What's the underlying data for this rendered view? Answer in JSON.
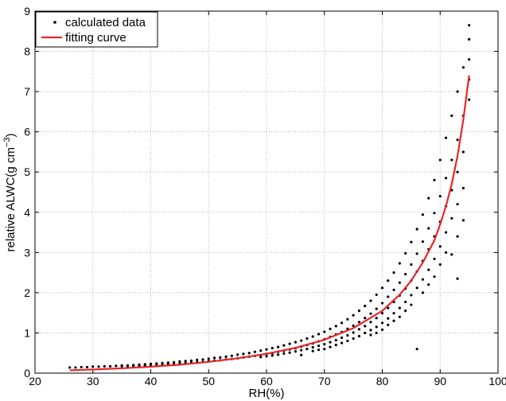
{
  "chart_data": {
    "type": "scatter",
    "xlabel": "RH(%)",
    "ylabel": "relative ALWC(g cm",
    "ylabel_superscript": "−3",
    "ylabel_close": ")",
    "xlim": [
      20,
      100
    ],
    "ylim": [
      0,
      9
    ],
    "xticks": [
      "20",
      "30",
      "40",
      "50",
      "60",
      "70",
      "80",
      "90",
      "100"
    ],
    "yticks": [
      "0",
      "1",
      "2",
      "3",
      "4",
      "5",
      "6",
      "7",
      "8",
      "9"
    ],
    "grid": true,
    "legend_position": "top-left",
    "series": [
      {
        "name": "calculated data",
        "kind": "points",
        "color": "#000000",
        "columns": [
          {
            "x": 26,
            "y": [
              0.14
            ]
          },
          {
            "x": 27,
            "y": [
              0.14
            ]
          },
          {
            "x": 28,
            "y": [
              0.15
            ]
          },
          {
            "x": 29,
            "y": [
              0.15
            ]
          },
          {
            "x": 30,
            "y": [
              0.16
            ]
          },
          {
            "x": 31,
            "y": [
              0.16
            ]
          },
          {
            "x": 32,
            "y": [
              0.17
            ]
          },
          {
            "x": 33,
            "y": [
              0.17
            ]
          },
          {
            "x": 34,
            "y": [
              0.18
            ]
          },
          {
            "x": 35,
            "y": [
              0.19,
              0.17
            ]
          },
          {
            "x": 36,
            "y": [
              0.19,
              0.17
            ]
          },
          {
            "x": 37,
            "y": [
              0.2,
              0.18
            ]
          },
          {
            "x": 38,
            "y": [
              0.21,
              0.18
            ]
          },
          {
            "x": 39,
            "y": [
              0.22,
              0.19
            ]
          },
          {
            "x": 40,
            "y": [
              0.23,
              0.19
            ]
          },
          {
            "x": 41,
            "y": [
              0.24,
              0.2
            ]
          },
          {
            "x": 42,
            "y": [
              0.25,
              0.21
            ]
          },
          {
            "x": 43,
            "y": [
              0.26,
              0.22
            ]
          },
          {
            "x": 44,
            "y": [
              0.27,
              0.23
            ]
          },
          {
            "x": 45,
            "y": [
              0.29,
              0.24
            ]
          },
          {
            "x": 46,
            "y": [
              0.3,
              0.25
            ]
          },
          {
            "x": 47,
            "y": [
              0.31,
              0.26
            ]
          },
          {
            "x": 48,
            "y": [
              0.33,
              0.27
            ]
          },
          {
            "x": 49,
            "y": [
              0.34,
              0.28
            ]
          },
          {
            "x": 50,
            "y": [
              0.36,
              0.3
            ]
          },
          {
            "x": 51,
            "y": [
              0.38,
              0.31
            ]
          },
          {
            "x": 52,
            "y": [
              0.39,
              0.32
            ]
          },
          {
            "x": 53,
            "y": [
              0.41,
              0.34
            ]
          },
          {
            "x": 54,
            "y": [
              0.43,
              0.35
            ]
          },
          {
            "x": 55,
            "y": [
              0.46,
              0.37
            ]
          },
          {
            "x": 56,
            "y": [
              0.48,
              0.39
            ]
          },
          {
            "x": 57,
            "y": [
              0.5,
              0.41
            ]
          },
          {
            "x": 58,
            "y": [
              0.53,
              0.43
            ]
          },
          {
            "x": 59,
            "y": [
              0.56,
              0.45,
              0.4
            ]
          },
          {
            "x": 60,
            "y": [
              0.59,
              0.48,
              0.42
            ]
          },
          {
            "x": 61,
            "y": [
              0.62,
              0.5,
              0.44
            ]
          },
          {
            "x": 62,
            "y": [
              0.65,
              0.53,
              0.46
            ]
          },
          {
            "x": 63,
            "y": [
              0.69,
              0.56,
              0.49
            ]
          },
          {
            "x": 64,
            "y": [
              0.73,
              0.59,
              0.51
            ]
          },
          {
            "x": 65,
            "y": [
              0.77,
              0.62,
              0.54
            ]
          },
          {
            "x": 66,
            "y": [
              0.81,
              0.66,
              0.57,
              0.45
            ]
          },
          {
            "x": 67,
            "y": [
              0.86,
              0.7,
              0.6
            ]
          },
          {
            "x": 68,
            "y": [
              0.91,
              0.74,
              0.64,
              0.55
            ]
          },
          {
            "x": 69,
            "y": [
              0.97,
              0.79,
              0.68,
              0.58
            ]
          },
          {
            "x": 70,
            "y": [
              1.03,
              0.84,
              0.72,
              0.6
            ]
          },
          {
            "x": 71,
            "y": [
              1.1,
              0.9,
              0.77,
              0.65
            ]
          },
          {
            "x": 72,
            "y": [
              1.17,
              0.96,
              0.82,
              0.7
            ]
          },
          {
            "x": 73,
            "y": [
              1.25,
              1.02,
              0.88,
              0.75
            ]
          },
          {
            "x": 74,
            "y": [
              1.34,
              1.1,
              0.94,
              0.8
            ]
          },
          {
            "x": 75,
            "y": [
              1.44,
              1.18,
              1.01,
              0.86
            ]
          },
          {
            "x": 76,
            "y": [
              1.55,
              1.27,
              1.09,
              0.92
            ]
          },
          {
            "x": 77,
            "y": [
              1.67,
              1.37,
              1.17,
              1.0
            ]
          },
          {
            "x": 78,
            "y": [
              1.8,
              1.48,
              1.27,
              1.07,
              0.95
            ]
          },
          {
            "x": 79,
            "y": [
              1.95,
              1.6,
              1.37,
              1.15,
              1.0
            ]
          },
          {
            "x": 80,
            "y": [
              2.12,
              1.74,
              1.49,
              1.25,
              1.08
            ]
          },
          {
            "x": 81,
            "y": [
              2.3,
              1.9,
              1.62,
              1.36,
              1.2
            ]
          },
          {
            "x": 82,
            "y": [
              2.5,
              2.07,
              1.77,
              1.49,
              1.3
            ]
          },
          {
            "x": 83,
            "y": [
              2.73,
              2.25,
              1.93,
              1.62,
              1.4
            ]
          },
          {
            "x": 84,
            "y": [
              2.98,
              2.46,
              2.1,
              1.77,
              1.55
            ]
          },
          {
            "x": 85,
            "y": [
              3.26,
              2.7,
              2.3,
              1.94,
              1.7
            ]
          },
          {
            "x": 86,
            "y": [
              3.58,
              2.97,
              2.53,
              2.12,
              0.6
            ]
          },
          {
            "x": 87,
            "y": [
              3.94,
              3.27,
              2.79,
              2.33,
              2.0
            ]
          },
          {
            "x": 88,
            "y": [
              4.35,
              3.6,
              3.08,
              2.57,
              2.2
            ]
          },
          {
            "x": 89,
            "y": [
              4.8,
              3.98,
              3.4,
              2.84,
              2.4
            ]
          },
          {
            "x": 90,
            "y": [
              5.3,
              4.4,
              3.76,
              3.15,
              2.7
            ]
          },
          {
            "x": 91,
            "y": [
              5.85,
              4.85,
              4.15,
              3.5,
              3.0
            ]
          },
          {
            "x": 92,
            "y": [
              6.4,
              5.3,
              4.55,
              3.85,
              2.95
            ]
          },
          {
            "x": 93,
            "y": [
              7.0,
              5.8,
              5.0,
              4.2,
              3.4,
              2.35
            ]
          },
          {
            "x": 94,
            "y": [
              7.6,
              6.4,
              5.5,
              4.6,
              3.8
            ]
          },
          {
            "x": 95,
            "y": [
              8.65,
              8.3,
              7.8,
              7.3,
              6.8
            ]
          }
        ]
      },
      {
        "name": "fitting curve",
        "kind": "line",
        "color": "#e8262a",
        "x": [
          26,
          30,
          35,
          40,
          45,
          50,
          55,
          60,
          65,
          70,
          75,
          80,
          83,
          85,
          87,
          89,
          90,
          91,
          92,
          93,
          94,
          95
        ],
        "y": [
          0.07,
          0.09,
          0.12,
          0.16,
          0.21,
          0.28,
          0.37,
          0.48,
          0.63,
          0.83,
          1.12,
          1.55,
          1.95,
          2.3,
          2.75,
          3.3,
          3.7,
          4.15,
          4.7,
          5.4,
          6.3,
          7.4
        ]
      }
    ]
  }
}
